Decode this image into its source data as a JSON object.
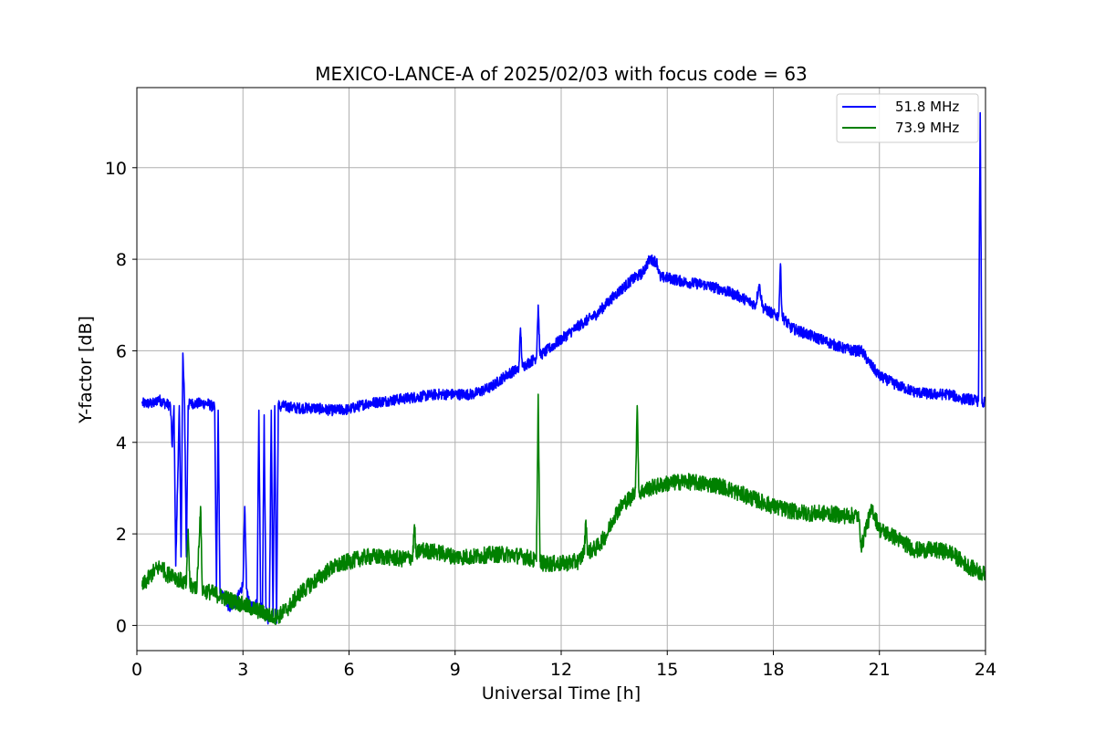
{
  "chart_data": {
    "type": "line",
    "title": "MEXICO-LANCE-A of 2025/02/03 with focus code = 63",
    "xlabel": "Universal Time [h]",
    "ylabel": "Y-factor [dB]",
    "xlim": [
      0,
      24
    ],
    "ylim": [
      -0.55,
      11.75
    ],
    "xticks": [
      0,
      3,
      6,
      9,
      12,
      15,
      18,
      21,
      24
    ],
    "yticks": [
      0,
      2,
      4,
      6,
      8,
      10
    ],
    "grid": true,
    "legend_position": "top-right",
    "series": [
      {
        "name": "51.8 MHz",
        "color": "#0000ff",
        "noise": 0.12,
        "x": [
          0.15,
          0.5,
          0.6,
          0.8,
          0.95,
          1.0,
          1.05,
          1.1,
          1.2,
          1.25,
          1.3,
          1.35,
          1.4,
          1.45,
          1.5,
          1.6,
          1.8,
          2.0,
          2.1,
          2.2,
          2.25,
          2.3,
          2.35,
          2.5,
          2.6,
          2.7,
          2.8,
          3.0,
          3.05,
          3.1,
          3.2,
          3.3,
          3.4,
          3.45,
          3.5,
          3.55,
          3.6,
          3.65,
          3.7,
          3.75,
          3.8,
          3.85,
          3.9,
          3.95,
          4.0,
          4.05,
          4.1,
          4.5,
          5.0,
          5.5,
          6.0,
          6.5,
          7.0,
          7.5,
          8.0,
          8.5,
          9.0,
          9.5,
          10.0,
          10.5,
          10.8,
          10.85,
          10.9,
          11.0,
          11.3,
          11.35,
          11.4,
          11.5,
          12.0,
          12.5,
          13.0,
          13.5,
          14.0,
          14.3,
          14.5,
          14.7,
          14.8,
          15.0,
          15.5,
          16.0,
          16.5,
          17.0,
          17.5,
          17.6,
          17.7,
          18.0,
          18.15,
          18.2,
          18.25,
          18.5,
          19.0,
          19.5,
          20.0,
          20.3,
          20.5,
          20.7,
          21.0,
          21.5,
          22.0,
          22.5,
          23.0,
          23.3,
          23.5,
          23.8,
          23.85,
          23.9,
          23.95,
          24.0
        ],
        "y": [
          4.85,
          4.85,
          4.95,
          4.85,
          4.8,
          3.9,
          4.8,
          1.3,
          4.8,
          1.5,
          5.95,
          4.8,
          1.5,
          4.8,
          4.85,
          4.85,
          4.85,
          4.85,
          4.8,
          4.75,
          0.8,
          4.7,
          0.7,
          0.6,
          0.4,
          0.45,
          0.5,
          0.9,
          2.6,
          0.8,
          0.4,
          0.4,
          0.5,
          4.7,
          0.5,
          0.3,
          4.6,
          0.4,
          0.1,
          0.4,
          4.7,
          0.2,
          4.8,
          0.05,
          4.85,
          4.75,
          4.8,
          4.75,
          4.75,
          4.7,
          4.72,
          4.85,
          4.9,
          4.95,
          5.0,
          5.05,
          5.05,
          5.05,
          5.2,
          5.5,
          5.6,
          6.5,
          5.65,
          5.7,
          5.85,
          7.0,
          5.9,
          5.95,
          6.25,
          6.55,
          6.8,
          7.2,
          7.55,
          7.7,
          8.0,
          7.95,
          7.6,
          7.6,
          7.5,
          7.45,
          7.35,
          7.2,
          7.0,
          7.45,
          6.95,
          6.8,
          6.75,
          7.9,
          6.75,
          6.5,
          6.35,
          6.2,
          6.05,
          6.0,
          6.0,
          5.75,
          5.45,
          5.25,
          5.1,
          5.05,
          5.05,
          4.95,
          4.95,
          4.9,
          11.2,
          4.85,
          4.85,
          4.9
        ]
      },
      {
        "name": "73.9 MHz",
        "color": "#008000",
        "noise": 0.18,
        "x": [
          0.15,
          0.3,
          0.5,
          0.7,
          0.85,
          1.0,
          1.1,
          1.2,
          1.3,
          1.4,
          1.45,
          1.5,
          1.7,
          1.8,
          1.85,
          1.9,
          2.0,
          2.5,
          3.0,
          3.5,
          3.8,
          4.0,
          4.3,
          4.6,
          5.0,
          5.5,
          6.0,
          6.5,
          7.0,
          7.5,
          7.8,
          7.85,
          7.9,
          8.0,
          8.5,
          9.0,
          9.5,
          10.0,
          10.5,
          11.0,
          11.3,
          11.35,
          11.4,
          11.5,
          12.0,
          12.5,
          12.65,
          12.7,
          12.75,
          13.0,
          13.3,
          13.5,
          13.8,
          14.0,
          14.1,
          14.15,
          14.2,
          14.5,
          15.0,
          15.5,
          16.0,
          16.5,
          17.0,
          17.5,
          18.0,
          18.5,
          19.0,
          19.5,
          20.0,
          20.4,
          20.5,
          20.6,
          20.8,
          21.0,
          21.5,
          22.0,
          22.5,
          23.0,
          23.5,
          24.0
        ],
        "y": [
          0.85,
          1.0,
          1.2,
          1.3,
          1.1,
          1.15,
          1.05,
          1.0,
          0.95,
          0.9,
          2.1,
          0.85,
          0.85,
          2.6,
          0.8,
          0.75,
          0.75,
          0.6,
          0.45,
          0.3,
          0.2,
          0.2,
          0.4,
          0.7,
          0.95,
          1.25,
          1.4,
          1.5,
          1.5,
          1.45,
          1.5,
          2.2,
          1.5,
          1.65,
          1.6,
          1.5,
          1.5,
          1.55,
          1.55,
          1.5,
          1.4,
          5.05,
          1.4,
          1.35,
          1.35,
          1.4,
          1.6,
          2.3,
          1.6,
          1.7,
          2.0,
          2.4,
          2.7,
          2.8,
          3.0,
          4.8,
          2.9,
          3.0,
          3.1,
          3.15,
          3.1,
          3.05,
          2.9,
          2.75,
          2.6,
          2.5,
          2.45,
          2.45,
          2.4,
          2.4,
          1.7,
          2.1,
          2.55,
          2.1,
          1.9,
          1.65,
          1.65,
          1.6,
          1.3,
          1.1
        ]
      }
    ]
  }
}
